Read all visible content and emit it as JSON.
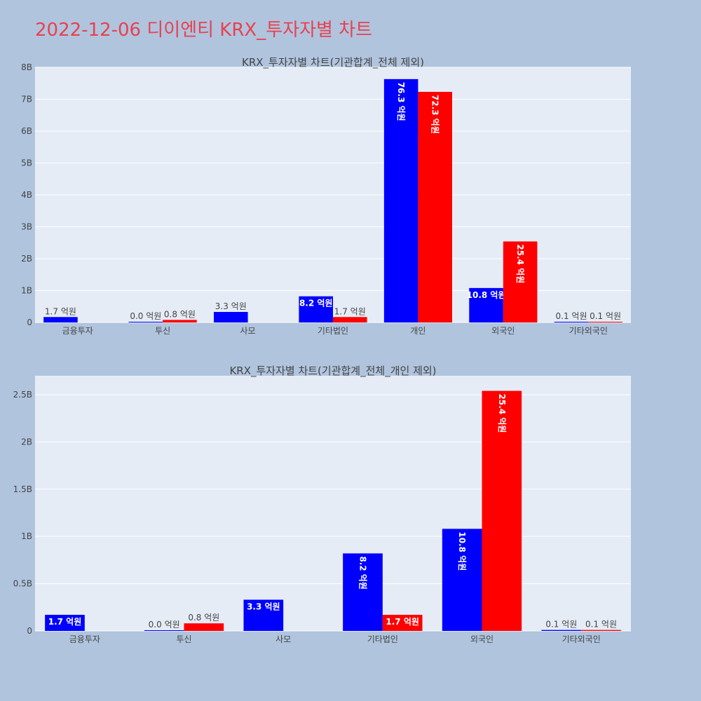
{
  "page_title": "2022-12-06 디이엔티 KRX_투자자별 차트",
  "chart_data": [
    {
      "type": "bar",
      "title": "KRX_투자자별 차트(기관합계_전체 제외)",
      "categories": [
        "금융투자",
        "투신",
        "사모",
        "기타법인",
        "개인",
        "외국인",
        "기타외국인"
      ],
      "series": [
        {
          "values": [
            170000000,
            0,
            330000000,
            820000000,
            7630000000,
            1080000000,
            10000000
          ],
          "labels": [
            "1.7 억원",
            "0.0 억원",
            "3.3 억원",
            "8.2 억원",
            "76.3 억원",
            "10.8 억원",
            "0.1 억원"
          ],
          "color": "#0000ff"
        },
        {
          "values": [
            null,
            80000000,
            null,
            170000000,
            7230000000,
            2540000000,
            10000000
          ],
          "labels": [
            "",
            "0.8 억원",
            "",
            "1.7 억원",
            "72.3 억원",
            "25.4 억원",
            "0.1 억원"
          ],
          "color": "#ff0000"
        }
      ],
      "ylim": [
        0,
        8000000000
      ],
      "yticks": [
        0,
        1000000000,
        2000000000,
        3000000000,
        4000000000,
        5000000000,
        6000000000,
        7000000000,
        8000000000
      ],
      "ytick_labels": [
        "0",
        "1B",
        "2B",
        "3B",
        "4B",
        "5B",
        "6B",
        "7B",
        "8B"
      ]
    },
    {
      "type": "bar",
      "title": "KRX_투자자별 차트(기관합계_전체_개인 제외)",
      "categories": [
        "금융투자",
        "투신",
        "사모",
        "기타법인",
        "외국인",
        "기타외국인"
      ],
      "series": [
        {
          "values": [
            170000000,
            0,
            330000000,
            820000000,
            1080000000,
            10000000
          ],
          "labels": [
            "1.7 억원",
            "0.0 억원",
            "3.3 억원",
            "8.2 억원",
            "10.8 억원",
            "0.1 억원"
          ],
          "color": "#0000ff"
        },
        {
          "values": [
            null,
            80000000,
            null,
            170000000,
            2540000000,
            10000000
          ],
          "labels": [
            "",
            "0.8 억원",
            "",
            "1.7 억원",
            "25.4 억원",
            "0.1 억원"
          ],
          "color": "#ff0000"
        }
      ],
      "ylim": [
        0,
        2700000000
      ],
      "yticks": [
        0,
        500000000,
        1000000000,
        1500000000,
        2000000000,
        2500000000
      ],
      "ytick_labels": [
        "0",
        "0.5B",
        "1B",
        "1.5B",
        "2B",
        "2.5B"
      ]
    }
  ],
  "colors": {
    "background": "#b0c4de",
    "plot_bg": "#e5ecf6",
    "grid": "#ffffff",
    "title": "#e8414f"
  }
}
